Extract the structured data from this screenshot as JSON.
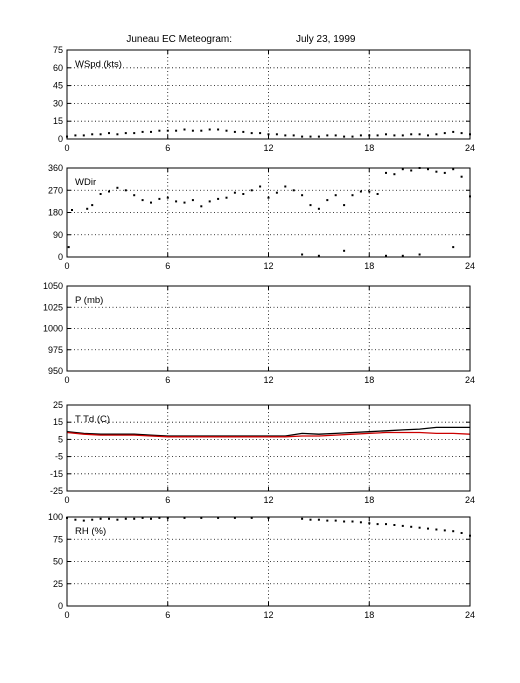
{
  "title": "Juneau EC Meteogram:",
  "date": "July 23, 1999",
  "chart_data": [
    {
      "type": "scatter",
      "label": "WSpd (kts)",
      "xlim": [
        0,
        24
      ],
      "ylim": [
        0,
        75
      ],
      "xticks": [
        0,
        6,
        12,
        18,
        24
      ],
      "yticks": [
        0,
        15,
        30,
        45,
        60,
        75
      ],
      "grid": true,
      "series": [
        {
          "color": "#000000",
          "x": [
            0,
            0.5,
            1,
            1.5,
            2,
            2.5,
            3,
            3.5,
            4,
            4.5,
            5,
            5.5,
            6,
            6.5,
            7,
            7.5,
            8,
            8.5,
            9,
            9.5,
            10,
            10.5,
            11,
            11.5,
            12,
            12.5,
            13,
            13.5,
            14,
            14.5,
            15,
            15.5,
            16,
            16.5,
            17,
            17.5,
            18,
            18.5,
            19,
            19.5,
            20,
            20.5,
            21,
            21.5,
            22,
            22.5,
            23,
            23.5,
            24
          ],
          "y": [
            2,
            3,
            3,
            4,
            4,
            5,
            4,
            5,
            5,
            6,
            6,
            7,
            7,
            7,
            8,
            7,
            7,
            8,
            8,
            7,
            6,
            6,
            5,
            5,
            4,
            4,
            3,
            3,
            2,
            2,
            2,
            3,
            3,
            2,
            2,
            3,
            3,
            3,
            4,
            3,
            3,
            4,
            4,
            3,
            4,
            5,
            6,
            5,
            4
          ]
        }
      ]
    },
    {
      "type": "scatter",
      "label": "WDir",
      "xlim": [
        0,
        24
      ],
      "ylim": [
        0,
        360
      ],
      "xticks": [
        0,
        6,
        12,
        18,
        24
      ],
      "yticks": [
        0,
        90,
        180,
        270,
        360
      ],
      "grid": true,
      "series": [
        {
          "color": "#000000",
          "x": [
            0.1,
            0.3,
            1.2,
            1.5,
            2,
            2.5,
            3,
            3.5,
            4,
            4.5,
            5,
            5.5,
            6,
            6.5,
            7,
            7.5,
            8,
            8.5,
            9,
            9.5,
            10,
            10.5,
            11,
            11.5,
            12,
            12.5,
            13,
            13.5,
            14,
            14.5,
            15,
            15.5,
            16,
            16.5,
            17,
            17.5,
            18,
            18.5,
            19,
            19.5,
            20,
            20.5,
            21,
            21.5,
            22,
            22.5,
            23,
            23.5,
            24,
            14,
            15,
            16.5,
            19,
            20,
            21,
            23
          ],
          "y": [
            40,
            190,
            195,
            210,
            255,
            265,
            280,
            270,
            250,
            230,
            220,
            235,
            240,
            225,
            220,
            230,
            205,
            225,
            235,
            240,
            260,
            255,
            270,
            285,
            240,
            260,
            285,
            270,
            250,
            210,
            195,
            230,
            250,
            210,
            250,
            265,
            265,
            255,
            340,
            335,
            355,
            350,
            360,
            355,
            345,
            340,
            355,
            325,
            245,
            10,
            5,
            25,
            5,
            5,
            10,
            40
          ]
        }
      ]
    },
    {
      "type": "line",
      "label": "P (mb)",
      "xlim": [
        0,
        24
      ],
      "ylim": [
        950,
        1050
      ],
      "xticks": [
        0,
        6,
        12,
        18,
        24
      ],
      "yticks": [
        950,
        975,
        1000,
        1025,
        1050
      ],
      "grid": true,
      "series": []
    },
    {
      "type": "line",
      "label": "T Td (C)",
      "xlim": [
        0,
        24
      ],
      "ylim": [
        -25,
        25
      ],
      "xticks": [
        0,
        6,
        12,
        18,
        24
      ],
      "yticks": [
        -25,
        -15,
        -5,
        5,
        15,
        25
      ],
      "grid": true,
      "series": [
        {
          "color": "#000000",
          "x": [
            0,
            1,
            2,
            3,
            4,
            5,
            6,
            7,
            8,
            9,
            10,
            11,
            12,
            13,
            14,
            15,
            16,
            17,
            18,
            19,
            20,
            21,
            22,
            23,
            24
          ],
          "y": [
            9.5,
            8.5,
            8,
            8,
            8,
            7.5,
            7,
            7,
            7,
            7,
            7,
            7,
            7,
            7,
            8.5,
            8,
            8.5,
            9,
            9.5,
            10,
            10.5,
            11,
            12,
            12,
            12
          ]
        },
        {
          "color": "#cc0000",
          "x": [
            0,
            1,
            2,
            3,
            4,
            5,
            6,
            7,
            8,
            9,
            10,
            11,
            12,
            13,
            14,
            15,
            16,
            17,
            18,
            19,
            20,
            21,
            22,
            23,
            24
          ],
          "y": [
            9,
            8,
            7.5,
            7.5,
            7.5,
            7,
            6.5,
            6.5,
            6.5,
            6.5,
            6.5,
            6.5,
            6.5,
            6.5,
            7,
            7,
            7.5,
            8,
            8.5,
            9,
            9,
            9,
            8.5,
            8.5,
            8
          ]
        }
      ]
    },
    {
      "type": "scatter",
      "label": "RH (%)",
      "xlim": [
        0,
        24
      ],
      "ylim": [
        0,
        100
      ],
      "xticks": [
        0,
        6,
        12,
        18,
        24
      ],
      "yticks": [
        0,
        25,
        50,
        75,
        100
      ],
      "grid": true,
      "series": [
        {
          "color": "#000000",
          "x": [
            0,
            0.5,
            1,
            1.5,
            2,
            2.5,
            3,
            3.5,
            4,
            4.5,
            5,
            5.5,
            6,
            7,
            8,
            9,
            10,
            11,
            12,
            14,
            14.5,
            15,
            15.5,
            16,
            16.5,
            17,
            17.5,
            18,
            18.5,
            19,
            19.5,
            20,
            20.5,
            21,
            21.5,
            22,
            22.5,
            23,
            23.5,
            24
          ],
          "y": [
            99,
            97,
            96,
            97,
            98,
            98,
            97,
            98,
            98,
            99,
            98,
            99,
            99,
            99,
            99,
            99,
            99,
            99,
            99,
            98,
            97,
            97,
            96,
            96,
            95,
            95,
            94,
            93,
            92,
            92,
            91,
            90,
            89,
            88,
            87,
            86,
            85,
            84,
            82,
            79
          ]
        }
      ]
    }
  ]
}
